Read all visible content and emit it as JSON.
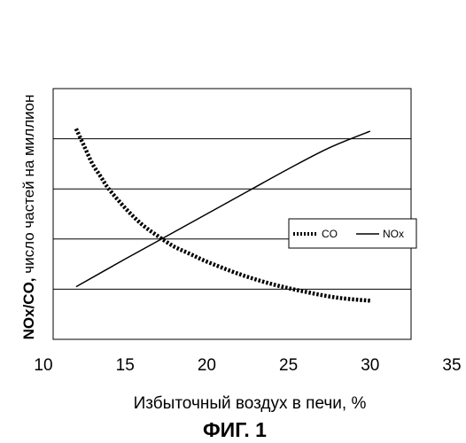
{
  "chart_data": {
    "type": "line",
    "xlabel": "Избыточный воздух в печи, %",
    "ylabel_bold": "NOx/CO,",
    "ylabel_rest": " число частей на миллион",
    "caption": "ФИГ. 1",
    "xlim": [
      10,
      35
    ],
    "x_ticks": [
      "10",
      "15",
      "20",
      "25",
      "30",
      "35"
    ],
    "ylim": [
      0,
      5
    ],
    "y_ticks_labeled": false,
    "grid": "horizontal",
    "legend_position": "center-right",
    "series": [
      {
        "name": "CO",
        "style": "dotted",
        "color": "#000000",
        "x": [
          12.0,
          12.5,
          13.0,
          13.5,
          14.0,
          15.0,
          16.0,
          17.0,
          18.0,
          19.0,
          20.0,
          22.0,
          24.0,
          26.0,
          28.0,
          30.0
        ],
        "y": [
          4.2,
          3.85,
          3.5,
          3.25,
          3.0,
          2.62,
          2.3,
          2.06,
          1.85,
          1.7,
          1.55,
          1.3,
          1.1,
          0.95,
          0.83,
          0.77
        ]
      },
      {
        "name": "NOx",
        "style": "solid",
        "color": "#000000",
        "x": [
          12.0,
          15.0,
          17.5,
          20.0,
          22.5,
          25.0,
          27.5,
          30.0
        ],
        "y": [
          1.05,
          1.6,
          2.05,
          2.5,
          2.95,
          3.4,
          3.82,
          4.15
        ]
      }
    ]
  }
}
